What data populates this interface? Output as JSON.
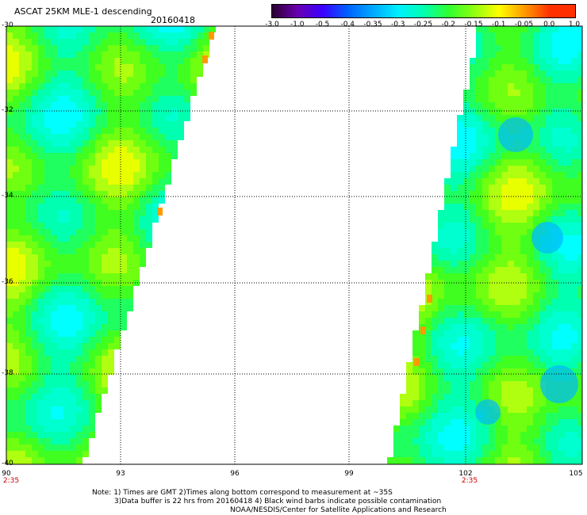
{
  "title": "ASCAT 25KM MLE-1 descending",
  "date": "20160418",
  "colorbar": {
    "labels": [
      "-3.0",
      "-1.0",
      "-0.5",
      "-0.4",
      "-0.35",
      "-0.3",
      "-0.25",
      "-0.2",
      "-0.15",
      "-0.1",
      "-0.05",
      "0.0",
      "1.0"
    ],
    "colors": [
      "#2a0030",
      "#6a00b0",
      "#3a00ff",
      "#0060ff",
      "#00a8ff",
      "#00f0ff",
      "#00ffb0",
      "#30ff30",
      "#90ff10",
      "#ffff00",
      "#ff9a00",
      "#ff3000"
    ]
  },
  "y_ticks": [
    "-30",
    "-32",
    "-34",
    "-36",
    "-38",
    "-40"
  ],
  "x_ticks": [
    "90",
    "93",
    "96",
    "99",
    "102",
    "105"
  ],
  "times": [
    {
      "text": "2:35",
      "lon": "90"
    },
    {
      "text": "2:35",
      "lon": "102"
    }
  ],
  "notes": [
    "Note: 1) Times are GMT 2)Times along bottom correspond to measurement at ~35S",
    "3)Data buffer is 22 hrs from 20160418 4) Black wind barbs indicate possible contamination",
    "NOAA/NESDIS/Center for Satellite Applications and Research"
  ]
}
